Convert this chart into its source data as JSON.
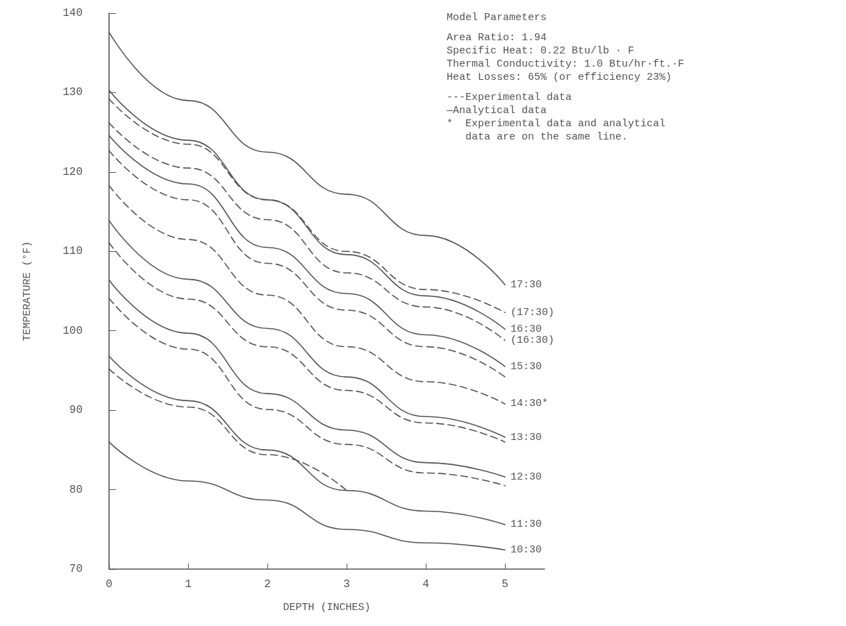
{
  "chart_data": {
    "type": "line",
    "xlabel": "DEPTH (INCHES)",
    "ylabel": "TEMPERATURE (°F)",
    "x": [
      0,
      1,
      2,
      3,
      4,
      5
    ],
    "xlim": [
      0,
      5.5
    ],
    "xticks": [
      0,
      1,
      2,
      3,
      4,
      5
    ],
    "ylim": [
      70,
      140
    ],
    "yticks": [
      70,
      80,
      90,
      100,
      110,
      120,
      130,
      140
    ],
    "grid": false,
    "legend": false,
    "marker": "none",
    "series": [
      {
        "name": "17:30",
        "color": "#555555",
        "line_style": "solid",
        "values": [
          137.6,
          129.0,
          122.5,
          117.2,
          112.0,
          105.8
        ]
      },
      {
        "name": "(17:30)",
        "color": "#555555",
        "line_style": "dashed",
        "values": [
          129.2,
          123.5,
          116.5,
          110.0,
          105.2,
          102.3
        ]
      },
      {
        "name": "16:30",
        "color": "#555555",
        "line_style": "solid",
        "values": [
          130.3,
          124.0,
          116.5,
          109.6,
          104.4,
          100.2
        ]
      },
      {
        "name": "(16:30)",
        "color": "#555555",
        "line_style": "dashed",
        "values": [
          126.2,
          120.5,
          114.0,
          107.3,
          103.0,
          98.8
        ]
      },
      {
        "name": "15:30",
        "color": "#555555",
        "line_style": "solid",
        "values": [
          124.6,
          118.5,
          110.5,
          104.7,
          99.5,
          95.5
        ]
      },
      {
        "color": "#555555",
        "line_style": "dashed",
        "values": [
          122.7,
          116.5,
          108.5,
          102.6,
          98.0,
          94.2
        ]
      },
      {
        "name": "14:30*",
        "color": "#555555",
        "line_style": "dashed",
        "values": [
          118.3,
          111.5,
          104.5,
          98.0,
          93.6,
          90.8
        ]
      },
      {
        "name": "13:30",
        "color": "#555555",
        "line_style": "solid",
        "values": [
          113.9,
          106.5,
          100.3,
          94.2,
          89.2,
          86.6
        ]
      },
      {
        "color": "#555555",
        "line_style": "dashed",
        "values": [
          111.1,
          104.0,
          98.0,
          92.5,
          88.4,
          86.0
        ]
      },
      {
        "name": "12:30",
        "color": "#555555",
        "line_style": "solid",
        "values": [
          106.4,
          99.7,
          92.1,
          87.5,
          83.4,
          81.6
        ]
      },
      {
        "color": "#555555",
        "line_style": "dashed",
        "values": [
          104.1,
          97.7,
          90.1,
          85.7,
          82.1,
          80.5
        ]
      },
      {
        "name": "11:30",
        "color": "#555555",
        "line_style": "solid",
        "values": [
          96.8,
          91.2,
          85.0,
          79.9,
          77.3,
          75.6
        ]
      },
      {
        "color": "#555555",
        "line_style": "dashed",
        "x": [
          0,
          1,
          2,
          3
        ],
        "values": [
          95.2,
          90.4,
          84.4,
          79.9
        ]
      },
      {
        "name": "10:30",
        "color": "#555555",
        "line_style": "solid",
        "values": [
          86.0,
          81.1,
          78.7,
          75.0,
          73.3,
          72.4
        ]
      }
    ],
    "annotations": [
      "Model Parameters",
      "Area Ratio: 1.94",
      "Specific Heat: 0.22 Btu/lb · F",
      "Thermal Conductivity: 1.0 Btu/hr·ft.·F",
      "Heat Losses: 65% (or efficiency 23%)",
      "---Experimental data",
      "—Analytical data",
      "*  Experimental data and analytical",
      "   data are on the same line."
    ]
  }
}
